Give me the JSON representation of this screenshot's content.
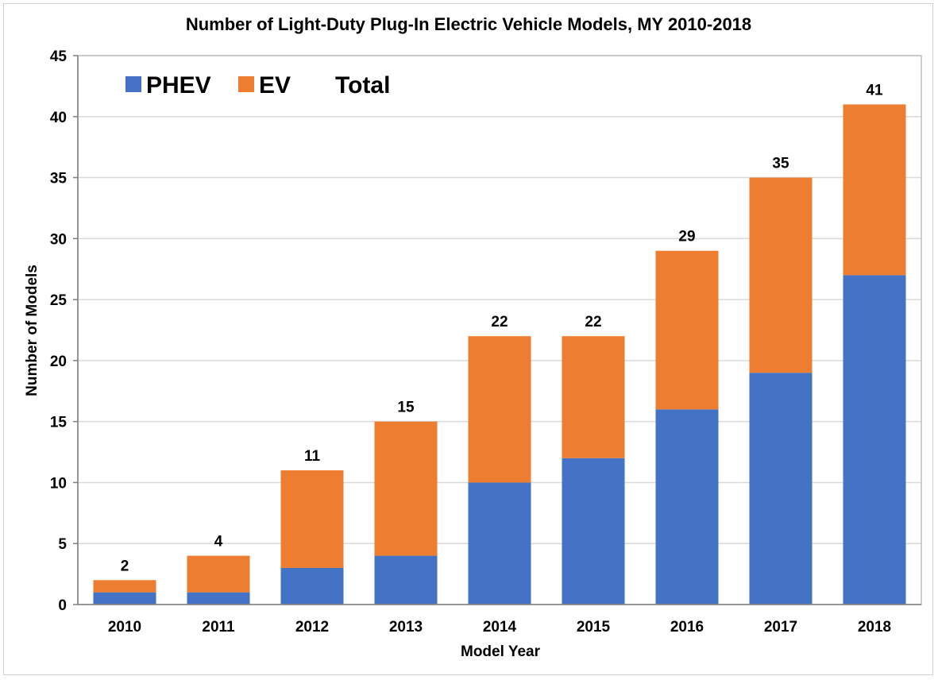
{
  "chart_data": {
    "type": "bar",
    "stacked": true,
    "title": "Number of Light-Duty Plug-In Electric Vehicle Models, MY 2010-2018",
    "xlabel": "Model Year",
    "ylabel": "Number of Models",
    "ylim": [
      0,
      45
    ],
    "yticks": [
      0,
      5,
      10,
      15,
      20,
      25,
      30,
      35,
      40,
      45
    ],
    "grid": true,
    "legend_position": "top-left",
    "categories": [
      "2010",
      "2011",
      "2012",
      "2013",
      "2014",
      "2015",
      "2016",
      "2017",
      "2018"
    ],
    "series": [
      {
        "name": "PHEV",
        "color": "#4472C4",
        "values": [
          1,
          1,
          3,
          4,
          10,
          12,
          16,
          19,
          27
        ]
      },
      {
        "name": "EV",
        "color": "#ED7D31",
        "values": [
          1,
          3,
          8,
          11,
          12,
          10,
          13,
          16,
          14
        ]
      }
    ],
    "totals_label": "Total",
    "totals": [
      2,
      4,
      11,
      15,
      22,
      22,
      29,
      35,
      41
    ]
  }
}
